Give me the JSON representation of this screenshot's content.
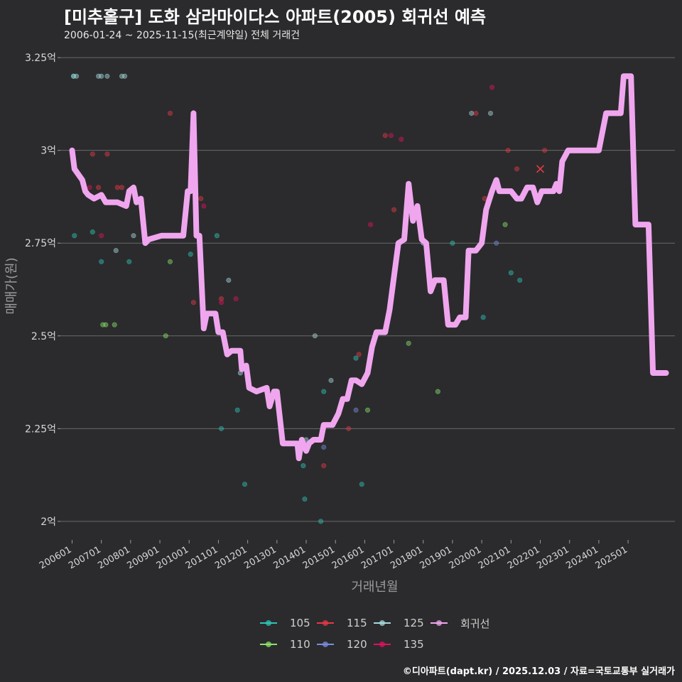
{
  "title": "[미추홀구] 도화 삼라마이다스 아파트(2005) 회귀선 예측",
  "subtitle": "2006-01-24 ~ 2025-11-15(최근계약일) 전체 거래건",
  "footer": "©디아파트(dapt.kr) / 2025.12.03 / 자료=국토교통부 실거래가",
  "legend": {
    "items": [
      {
        "label": "105",
        "color": "#2ec4b6"
      },
      {
        "label": "115",
        "color": "#e63946"
      },
      {
        "label": "125",
        "color": "#a8dadc"
      },
      {
        "label": "회귀선",
        "color": "#f0a6ef"
      },
      {
        "label": "110",
        "color": "#8ae36a"
      },
      {
        "label": "120",
        "color": "#7b8cde"
      },
      {
        "label": "135",
        "color": "#e0115f"
      }
    ]
  },
  "chart_data": {
    "type": "scatter",
    "title": "[미추홀구] 도화 삼라마이다스 아파트(2005) 회귀선 예측",
    "xlabel": "거래년월",
    "ylabel": "매매가(원)",
    "ylim": [
      1.95,
      3.3
    ],
    "xlim": [
      2005.6,
      2026.6
    ],
    "yticks": [
      {
        "v": 2.0,
        "label": "2억"
      },
      {
        "v": 2.25,
        "label": "2.25억"
      },
      {
        "v": 2.5,
        "label": "2.5억"
      },
      {
        "v": 2.75,
        "label": "2.75억"
      },
      {
        "v": 3.0,
        "label": "3억"
      },
      {
        "v": 3.25,
        "label": "3.25억"
      }
    ],
    "xticks": [
      {
        "v": 2006.0,
        "label": "200601"
      },
      {
        "v": 2007.0,
        "label": "200701"
      },
      {
        "v": 2008.0,
        "label": "200801"
      },
      {
        "v": 2009.0,
        "label": "200901"
      },
      {
        "v": 2010.0,
        "label": "201001"
      },
      {
        "v": 2011.0,
        "label": "201101"
      },
      {
        "v": 2012.0,
        "label": "201201"
      },
      {
        "v": 2013.0,
        "label": "201301"
      },
      {
        "v": 2014.0,
        "label": "201401"
      },
      {
        "v": 2015.0,
        "label": "201501"
      },
      {
        "v": 2016.0,
        "label": "201601"
      },
      {
        "v": 2017.0,
        "label": "201701"
      },
      {
        "v": 2018.0,
        "label": "201801"
      },
      {
        "v": 2019.0,
        "label": "201901"
      },
      {
        "v": 2020.0,
        "label": "202001"
      },
      {
        "v": 2021.0,
        "label": "202101"
      },
      {
        "v": 2022.0,
        "label": "202201"
      },
      {
        "v": 2023.0,
        "label": "202301"
      },
      {
        "v": 2024.0,
        "label": "202401"
      },
      {
        "v": 2025.0,
        "label": "202501"
      }
    ],
    "series": [
      {
        "name": "105",
        "color": "#2ec4b6",
        "points": [
          [
            2006.05,
            3.2
          ],
          [
            2006.08,
            2.77
          ],
          [
            2006.7,
            2.78
          ],
          [
            2007.0,
            2.7
          ],
          [
            2007.95,
            2.7
          ],
          [
            2010.05,
            2.72
          ],
          [
            2010.95,
            2.77
          ],
          [
            2011.1,
            2.25
          ],
          [
            2011.65,
            2.3
          ],
          [
            2011.9,
            2.1
          ],
          [
            2013.9,
            2.15
          ],
          [
            2013.95,
            2.06
          ],
          [
            2014.5,
            2.0
          ],
          [
            2014.6,
            2.35
          ],
          [
            2015.7,
            2.44
          ],
          [
            2015.9,
            2.1
          ],
          [
            2019.0,
            2.75
          ],
          [
            2020.05,
            2.55
          ],
          [
            2021.0,
            2.67
          ],
          [
            2021.3,
            2.65
          ]
        ]
      },
      {
        "name": "110",
        "color": "#8ae36a",
        "points": [
          [
            2007.05,
            2.53
          ],
          [
            2007.15,
            2.53
          ],
          [
            2007.45,
            2.53
          ],
          [
            2009.2,
            2.5
          ],
          [
            2009.35,
            2.7
          ],
          [
            2016.1,
            2.3
          ],
          [
            2017.5,
            2.48
          ],
          [
            2018.5,
            2.35
          ],
          [
            2020.8,
            2.8
          ]
        ]
      },
      {
        "name": "115",
        "color": "#e63946",
        "points": [
          [
            2006.7,
            2.99
          ],
          [
            2006.9,
            2.9
          ],
          [
            2007.2,
            2.99
          ],
          [
            2007.55,
            2.9
          ],
          [
            2007.7,
            2.9
          ],
          [
            2009.35,
            3.1
          ],
          [
            2010.15,
            2.59
          ],
          [
            2010.4,
            2.87
          ],
          [
            2011.1,
            2.6
          ],
          [
            2014.6,
            2.15
          ],
          [
            2015.45,
            2.25
          ],
          [
            2015.8,
            2.45
          ],
          [
            2016.7,
            3.04
          ],
          [
            2017.0,
            2.84
          ],
          [
            2019.8,
            3.1
          ],
          [
            2020.1,
            2.87
          ],
          [
            2020.9,
            3.0
          ],
          [
            2021.2,
            2.95
          ],
          [
            2022.15,
            3.0
          ]
        ]
      },
      {
        "name": "120",
        "color": "#7b8cde",
        "points": [
          [
            2014.6,
            2.2
          ],
          [
            2015.7,
            2.3
          ],
          [
            2020.5,
            2.75
          ]
        ]
      },
      {
        "name": "125",
        "color": "#a8dadc",
        "points": [
          [
            2006.05,
            3.2
          ],
          [
            2006.15,
            3.2
          ],
          [
            2006.9,
            3.2
          ],
          [
            2007.0,
            3.2
          ],
          [
            2007.2,
            3.2
          ],
          [
            2007.7,
            3.2
          ],
          [
            2007.8,
            3.2
          ],
          [
            2008.1,
            2.77
          ],
          [
            2007.5,
            2.73
          ],
          [
            2011.35,
            2.65
          ],
          [
            2011.75,
            2.4
          ],
          [
            2014.0,
            2.22
          ],
          [
            2014.3,
            2.5
          ],
          [
            2014.85,
            2.38
          ],
          [
            2018.0,
            2.75
          ],
          [
            2019.65,
            3.1
          ],
          [
            2020.3,
            3.1
          ]
        ]
      },
      {
        "name": "135",
        "color": "#e0115f",
        "points": [
          [
            2006.6,
            2.9
          ],
          [
            2007.0,
            2.77
          ],
          [
            2010.5,
            2.85
          ],
          [
            2011.1,
            2.59
          ],
          [
            2011.6,
            2.6
          ],
          [
            2014.8,
            2.26
          ],
          [
            2016.2,
            2.8
          ],
          [
            2016.9,
            3.04
          ],
          [
            2017.25,
            3.03
          ],
          [
            2020.35,
            3.17
          ]
        ]
      }
    ],
    "regression": {
      "name": "회귀선",
      "color": "#f0a6ef",
      "points": [
        [
          2006.0,
          3.0
        ],
        [
          2006.08,
          2.95
        ],
        [
          2006.35,
          2.92
        ],
        [
          2006.45,
          2.89
        ],
        [
          2006.55,
          2.88
        ],
        [
          2006.75,
          2.87
        ],
        [
          2007.0,
          2.88
        ],
        [
          2007.15,
          2.86
        ],
        [
          2007.55,
          2.86
        ],
        [
          2007.85,
          2.85
        ],
        [
          2007.95,
          2.89
        ],
        [
          2008.1,
          2.9
        ],
        [
          2008.2,
          2.86
        ],
        [
          2008.35,
          2.87
        ],
        [
          2008.5,
          2.75
        ],
        [
          2008.62,
          2.76
        ],
        [
          2009.05,
          2.77
        ],
        [
          2009.8,
          2.77
        ],
        [
          2009.95,
          2.89
        ],
        [
          2010.05,
          2.89
        ],
        [
          2010.15,
          3.1
        ],
        [
          2010.25,
          2.77
        ],
        [
          2010.35,
          2.77
        ],
        [
          2010.5,
          2.52
        ],
        [
          2010.6,
          2.56
        ],
        [
          2010.9,
          2.56
        ],
        [
          2011.0,
          2.51
        ],
        [
          2011.15,
          2.51
        ],
        [
          2011.3,
          2.45
        ],
        [
          2011.45,
          2.46
        ],
        [
          2011.75,
          2.46
        ],
        [
          2011.8,
          2.41
        ],
        [
          2011.95,
          2.42
        ],
        [
          2012.05,
          2.36
        ],
        [
          2012.3,
          2.35
        ],
        [
          2012.65,
          2.36
        ],
        [
          2012.75,
          2.31
        ],
        [
          2012.9,
          2.35
        ],
        [
          2013.0,
          2.35
        ],
        [
          2013.2,
          2.21
        ],
        [
          2013.5,
          2.21
        ],
        [
          2013.7,
          2.21
        ],
        [
          2013.75,
          2.17
        ],
        [
          2013.85,
          2.22
        ],
        [
          2014.0,
          2.19
        ],
        [
          2014.1,
          2.21
        ],
        [
          2014.25,
          2.22
        ],
        [
          2014.5,
          2.22
        ],
        [
          2014.6,
          2.26
        ],
        [
          2014.9,
          2.26
        ],
        [
          2015.1,
          2.29
        ],
        [
          2015.25,
          2.33
        ],
        [
          2015.4,
          2.33
        ],
        [
          2015.55,
          2.38
        ],
        [
          2015.7,
          2.38
        ],
        [
          2015.9,
          2.37
        ],
        [
          2016.1,
          2.4
        ],
        [
          2016.25,
          2.47
        ],
        [
          2016.4,
          2.51
        ],
        [
          2016.7,
          2.51
        ],
        [
          2016.85,
          2.57
        ],
        [
          2017.0,
          2.66
        ],
        [
          2017.15,
          2.75
        ],
        [
          2017.35,
          2.76
        ],
        [
          2017.5,
          2.91
        ],
        [
          2017.65,
          2.81
        ],
        [
          2017.8,
          2.85
        ],
        [
          2017.95,
          2.76
        ],
        [
          2018.1,
          2.75
        ],
        [
          2018.25,
          2.62
        ],
        [
          2018.4,
          2.65
        ],
        [
          2018.7,
          2.65
        ],
        [
          2018.85,
          2.53
        ],
        [
          2019.1,
          2.53
        ],
        [
          2019.25,
          2.55
        ],
        [
          2019.45,
          2.55
        ],
        [
          2019.55,
          2.73
        ],
        [
          2019.8,
          2.73
        ],
        [
          2020.0,
          2.75
        ],
        [
          2020.15,
          2.84
        ],
        [
          2020.35,
          2.89
        ],
        [
          2020.5,
          2.92
        ],
        [
          2020.6,
          2.89
        ],
        [
          2021.0,
          2.89
        ],
        [
          2021.2,
          2.87
        ],
        [
          2021.35,
          2.87
        ],
        [
          2021.55,
          2.9
        ],
        [
          2021.75,
          2.9
        ],
        [
          2021.9,
          2.86
        ],
        [
          2022.05,
          2.89
        ],
        [
          2022.45,
          2.89
        ],
        [
          2022.55,
          2.91
        ],
        [
          2022.65,
          2.89
        ],
        [
          2022.75,
          2.97
        ],
        [
          2022.95,
          3.0
        ],
        [
          2024.0,
          3.0
        ],
        [
          2024.25,
          3.1
        ],
        [
          2024.75,
          3.1
        ],
        [
          2024.85,
          3.2
        ],
        [
          2025.1,
          3.2
        ],
        [
          2025.25,
          2.8
        ],
        [
          2025.45,
          2.8
        ],
        [
          2025.7,
          2.8
        ],
        [
          2025.85,
          2.4
        ],
        [
          2026.3,
          2.4
        ]
      ]
    },
    "highlight": {
      "x": 2022.0,
      "y": 2.95
    }
  }
}
